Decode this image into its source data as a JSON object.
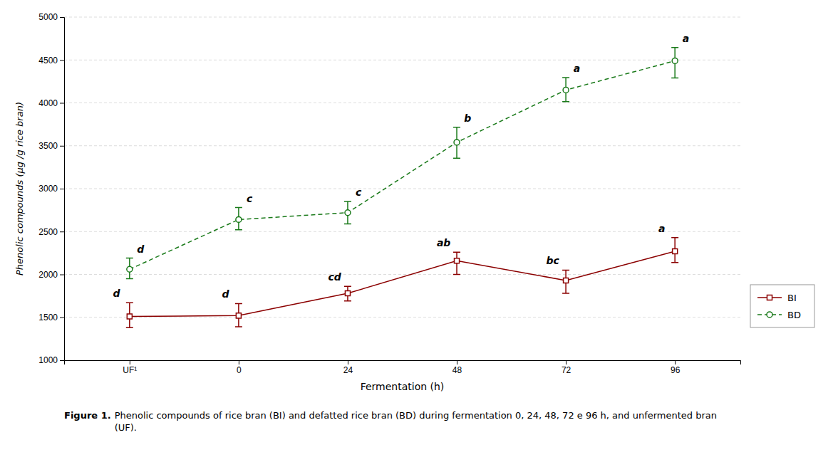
{
  "chart_data": {
    "type": "line",
    "categories": [
      "UF¹",
      "0",
      "24",
      "48",
      "72",
      "96"
    ],
    "xlabel": "Fermentation (h)",
    "ylabel": "Phenolic compounds (μg /g rice bran)",
    "ylim": [
      1000,
      5000
    ],
    "yticks": [
      1000,
      1500,
      2000,
      2500,
      3000,
      3500,
      4000,
      4500,
      5000
    ],
    "grid": true,
    "legend": "right",
    "series": [
      {
        "name": "BI",
        "color": "#8B0000",
        "marker": "square",
        "line_style": "solid",
        "values": [
          1510,
          1520,
          1780,
          2160,
          1930,
          2270
        ],
        "error_low": [
          130,
          130,
          90,
          160,
          150,
          130
        ],
        "error_high": [
          160,
          140,
          80,
          100,
          120,
          160
        ],
        "labels": [
          "d",
          "d",
          "cd",
          "ab",
          "bc",
          "a"
        ]
      },
      {
        "name": "BD",
        "color": "#1a7a1a",
        "marker": "circle",
        "line_style": "dashed",
        "values": [
          2060,
          2640,
          2720,
          3540,
          4150,
          4490
        ],
        "error_low": [
          110,
          120,
          130,
          185,
          135,
          200
        ],
        "error_high": [
          130,
          140,
          130,
          175,
          145,
          155
        ],
        "labels": [
          "d",
          "c",
          "c",
          "b",
          "a",
          "a"
        ]
      }
    ],
    "caption": [
      "Figure 1.",
      "Phenolic compounds of rice bran (BI) and defatted rice bran (BD) during fermentation 0, 24, 48, 72 e 96 h, and unfermented bran\n(UF)."
    ]
  }
}
